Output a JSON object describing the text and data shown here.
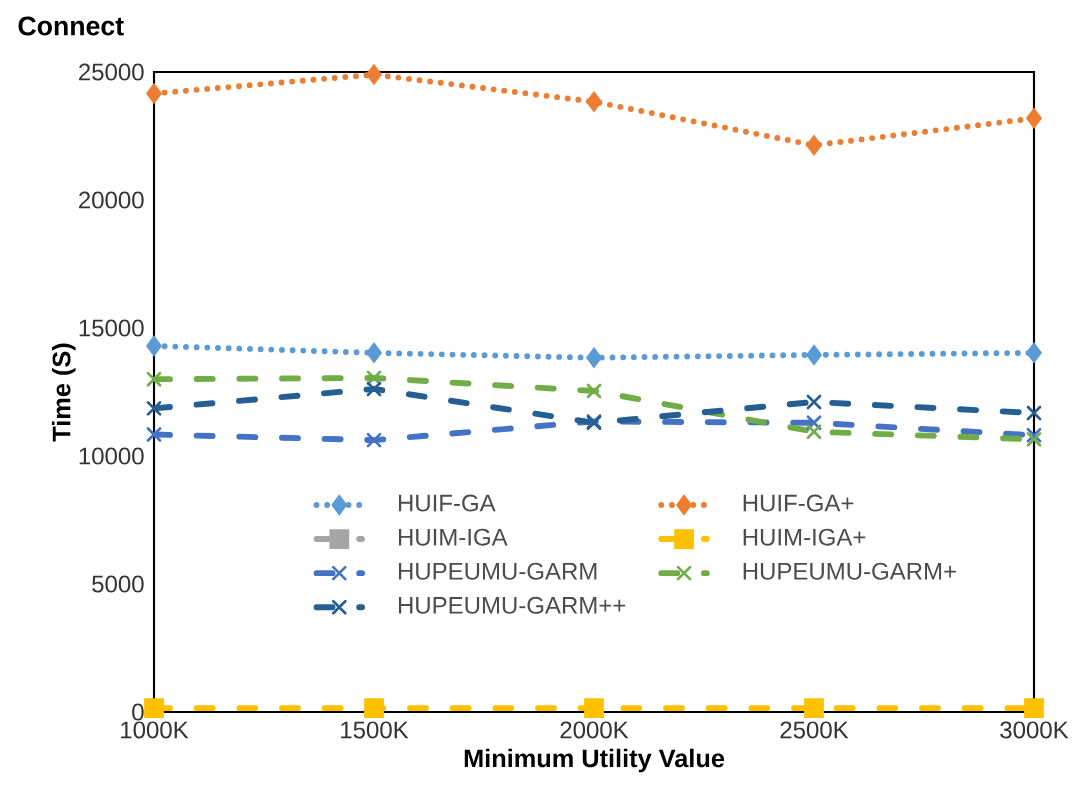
{
  "chart_data": {
    "type": "line",
    "title": "Connect",
    "xlabel": "Minimum Utility Value",
    "ylabel": "Time (S)",
    "categories": [
      "1000K",
      "1500K",
      "2000K",
      "2500K",
      "3000K"
    ],
    "ylim": [
      0,
      25000
    ],
    "yticks": [
      0,
      5000,
      10000,
      15000,
      20000,
      25000
    ],
    "grid": false,
    "legend": "bottom",
    "series": [
      {
        "name": "HUIF-GA",
        "color": "#5b9bd5",
        "marker": "diamond",
        "line_style": "dotted",
        "values": [
          14300,
          14030,
          13840,
          13950,
          14030
        ]
      },
      {
        "name": "HUIF-GA+",
        "color": "#ed7d31",
        "marker": "diamond",
        "line_style": "dotted",
        "values": [
          24160,
          24900,
          23840,
          22140,
          23190
        ]
      },
      {
        "name": "HUIM-IGA",
        "color": "#a5a5a5",
        "marker": "square",
        "line_style": "dashed",
        "values": [
          null,
          null,
          null,
          null,
          null
        ]
      },
      {
        "name": "HUIM-IGA+",
        "color": "#ffc000",
        "marker": "square",
        "line_style": "dashed",
        "values": [
          150,
          150,
          150,
          150,
          150
        ]
      },
      {
        "name": "HUPEUMU-GARM",
        "color": "#4472c4",
        "marker": "cross",
        "line_style": "dashed",
        "values": [
          10840,
          10620,
          11350,
          11300,
          10810
        ]
      },
      {
        "name": "HUPEUMU-GARM+",
        "color": "#70ad47",
        "marker": "cross",
        "line_style": "dashed",
        "values": [
          13000,
          13050,
          12540,
          10950,
          10650
        ]
      },
      {
        "name": "HUPEUMU-GARM++",
        "color": "#255e91",
        "marker": "cross",
        "line_style": "dashed",
        "values": [
          11860,
          12620,
          11300,
          12110,
          11680
        ]
      }
    ]
  }
}
